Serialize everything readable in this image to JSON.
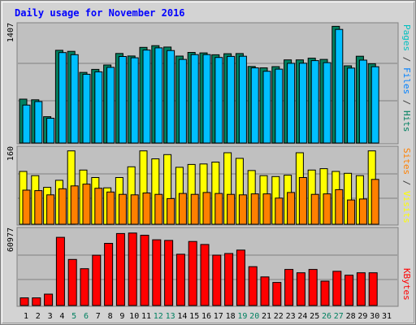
{
  "chart_data": {
    "type": "bar",
    "title": "Daily usage for November 2016",
    "categories": [
      "1",
      "2",
      "3",
      "4",
      "5",
      "6",
      "7",
      "8",
      "9",
      "10",
      "11",
      "12",
      "13",
      "14",
      "15",
      "16",
      "17",
      "18",
      "19",
      "20",
      "21",
      "22",
      "23",
      "24",
      "25",
      "26",
      "27",
      "28",
      "29",
      "30",
      "31"
    ],
    "weekend_days": [
      "5",
      "6",
      "12",
      "13",
      "19",
      "20",
      "26",
      "27"
    ],
    "panels": [
      {
        "id": "hits_files",
        "ymax": 1407,
        "ymax_label": "1407",
        "legend": [
          {
            "text": "Pages",
            "color": "#00c0c0"
          },
          {
            "text": " / ",
            "color": "#404040"
          },
          {
            "text": "Files",
            "color": "#0080ff"
          },
          {
            "text": " / ",
            "color": "#404040"
          },
          {
            "text": "Hits",
            "color": "#008060"
          }
        ],
        "series": [
          {
            "name": "Hits",
            "color": "#008060",
            "values": [
              524,
              516,
              314,
              1107,
              1095,
              843,
              879,
              932,
              1069,
              1039,
              1142,
              1162,
              1146,
              1038,
              1082,
              1076,
              1054,
              1066,
              1068,
              914,
              898,
              912,
              993,
              993,
              1013,
              998,
              1393,
              922,
              1036,
              947,
              null
            ]
          },
          {
            "name": "Files",
            "color": "#00bfff",
            "values": [
              453,
              495,
              296,
              1080,
              1055,
              821,
              850,
              903,
              1033,
              1018,
              1110,
              1136,
              1104,
              998,
              1056,
              1056,
              1022,
              1034,
              1036,
              898,
              857,
              882,
              952,
              953,
              984,
              960,
              1357,
              895,
              990,
              911,
              null
            ]
          },
          {
            "name": "Pages",
            "color": "#00c0c0",
            "values": [
              null,
              null,
              null,
              null,
              null,
              null,
              null,
              null,
              null,
              null,
              null,
              null,
              null,
              null,
              null,
              null,
              null,
              null,
              null,
              null,
              null,
              null,
              null,
              null,
              null,
              null,
              null,
              null,
              null,
              null,
              null
            ]
          }
        ]
      },
      {
        "id": "visits_sites",
        "ymax": 160,
        "ymax_label": "160",
        "legend": [
          {
            "text": "Sites",
            "color": "#ff8000"
          },
          {
            "text": " / ",
            "color": "#404040"
          },
          {
            "text": "Visits",
            "color": "#ffff00"
          }
        ],
        "series": [
          {
            "name": "Visits",
            "color": "#ffff00",
            "values": [
              113,
              104,
              79,
              94,
              157,
              116,
              100,
              78,
              100,
              123,
              157,
              140,
              149,
              122,
              128,
              129,
              133,
              153,
              141,
              115,
              104,
              102,
              105,
              153,
              116,
              119,
              113,
              109,
              104,
              157,
              null
            ]
          },
          {
            "name": "Sites",
            "color": "#ff8000",
            "values": [
              73,
              72,
              63,
              76,
              82,
              86,
              77,
              69,
              64,
              63,
              67,
              64,
              55,
              66,
              64,
              68,
              66,
              64,
              63,
              65,
              65,
              56,
              68,
              100,
              64,
              65,
              74,
              52,
              54,
              96,
              null
            ]
          }
        ]
      },
      {
        "id": "kbytes",
        "ymax": 60977,
        "ymax_label": "60977",
        "legend": [
          {
            "text": "KBytes",
            "color": "#ff0000"
          }
        ],
        "series": [
          {
            "name": "KBytes",
            "color": "#ff0000",
            "values": [
              6200,
              6200,
              9300,
              55600,
              37600,
              30000,
              41000,
              50700,
              58700,
              59100,
              57300,
              53600,
              53100,
              41800,
              52200,
              49800,
              41100,
              42400,
              45200,
              31700,
              23300,
              18800,
              29400,
              26700,
              29400,
              19900,
              27900,
              24700,
              26700,
              26700,
              null
            ]
          }
        ]
      }
    ]
  }
}
